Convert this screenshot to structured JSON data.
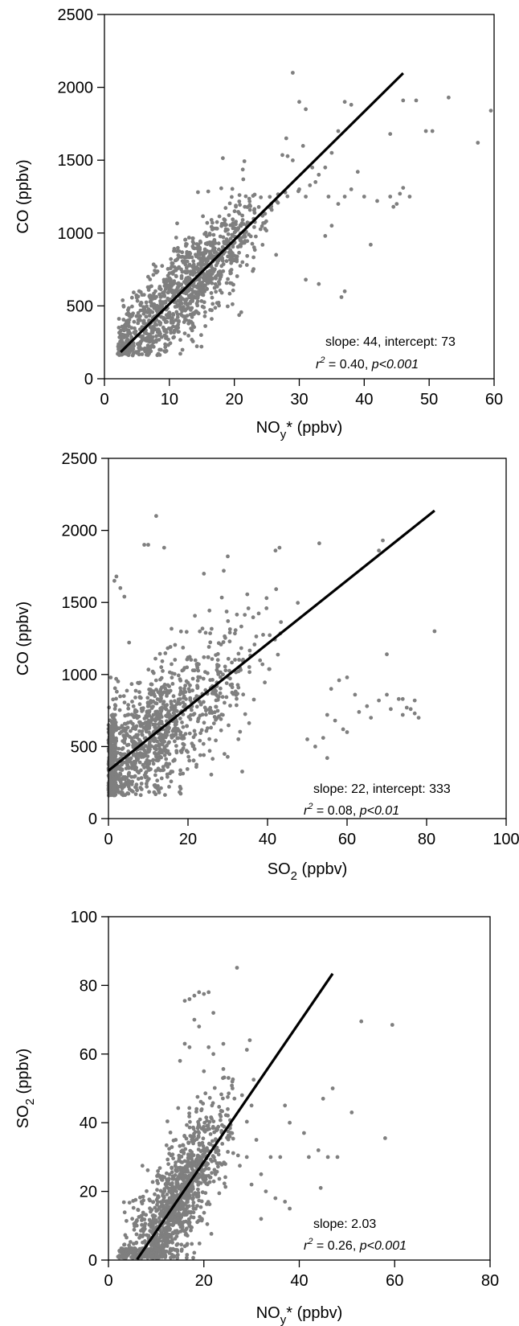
{
  "chart_data": [
    {
      "type": "scatter",
      "title": "",
      "xlabel": "NOy* (ppbv)",
      "xlabel_parts": {
        "base": "NO",
        "sub": "y",
        "rest": "* (ppbv)"
      },
      "ylabel": "CO (ppbv)",
      "xlim": [
        0,
        60
      ],
      "ylim": [
        0,
        2500
      ],
      "xticks": [
        "0",
        "10",
        "20",
        "30",
        "40",
        "50",
        "60"
      ],
      "yticks": [
        "0",
        "500",
        "1000",
        "1500",
        "2000",
        "2500"
      ],
      "grid": false,
      "point_color": "#7f7f7f",
      "line_color": "#000000",
      "fit": {
        "slope": 44,
        "intercept": 73,
        "x_range": [
          2.5,
          46
        ]
      },
      "annotation": {
        "line1": "slope: 44, intercept: 73",
        "r2_symbol": "r",
        "r2_exp": "2",
        "r2_value": " = 0.40, ",
        "p_text": "p<0.001"
      },
      "cluster": {
        "x_mean": 12,
        "x_sd": 6,
        "x_min": 2,
        "x_max": 32,
        "scatter_sd": 190,
        "count": 1200
      },
      "points": [
        [
          28,
          1650
        ],
        [
          30,
          1900
        ],
        [
          31,
          1850
        ],
        [
          29,
          2100
        ],
        [
          33,
          1400
        ],
        [
          32,
          1450
        ],
        [
          35,
          1550
        ],
        [
          36,
          1700
        ],
        [
          37,
          1900
        ],
        [
          38,
          1880
        ],
        [
          38,
          1300
        ],
        [
          37,
          1250
        ],
        [
          36,
          1200
        ],
        [
          37,
          600
        ],
        [
          36.5,
          560
        ],
        [
          33,
          650
        ],
        [
          31,
          680
        ],
        [
          40,
          1250
        ],
        [
          42,
          1220
        ],
        [
          44,
          1250
        ],
        [
          45,
          1200
        ],
        [
          45.5,
          1270
        ],
        [
          44.5,
          1180
        ],
        [
          46,
          1310
        ],
        [
          47,
          1250
        ],
        [
          44,
          1680
        ],
        [
          46,
          1910
        ],
        [
          48,
          1910
        ],
        [
          49.5,
          1700
        ],
        [
          50.5,
          1700
        ],
        [
          53,
          1930
        ],
        [
          57.5,
          1620
        ],
        [
          59.5,
          1840
        ],
        [
          34,
          1450
        ],
        [
          39,
          1420
        ],
        [
          35,
          1050
        ],
        [
          34,
          980
        ],
        [
          41,
          920
        ],
        [
          30,
          1300
        ],
        [
          31,
          1250
        ],
        [
          32.5,
          1350
        ],
        [
          34.5,
          1250
        ]
      ]
    },
    {
      "type": "scatter",
      "title": "",
      "xlabel": "SO2 (ppbv)",
      "xlabel_parts": {
        "base": "SO",
        "sub": "2",
        "rest": " (ppbv)"
      },
      "ylabel": "CO (ppbv)",
      "xlim": [
        0,
        100
      ],
      "ylim": [
        0,
        2500
      ],
      "xticks": [
        "0",
        "20",
        "40",
        "60",
        "80",
        "100"
      ],
      "yticks": [
        "0",
        "500",
        "1000",
        "1500",
        "2000",
        "2500"
      ],
      "grid": false,
      "point_color": "#7f7f7f",
      "line_color": "#000000",
      "fit": {
        "slope": 22,
        "intercept": 333,
        "x_range": [
          0,
          82
        ]
      },
      "annotation": {
        "line1": "slope: 22, intercept: 333",
        "r2_symbol": "r",
        "r2_exp": "2",
        "r2_value": " = 0.08, ",
        "p_text": "p<0.01"
      },
      "cluster": {
        "x_mean": 10,
        "x_sd": 12,
        "x_min": 0,
        "x_max": 62,
        "scatter_sd": 260,
        "count": 1300
      },
      "points": [
        [
          12,
          2100
        ],
        [
          10,
          1900
        ],
        [
          9,
          1900
        ],
        [
          14,
          1880
        ],
        [
          24,
          1700
        ],
        [
          30,
          1820
        ],
        [
          29,
          1720
        ],
        [
          42,
          1860
        ],
        [
          43,
          1880
        ],
        [
          53,
          1910
        ],
        [
          68,
          1860
        ],
        [
          69,
          1930
        ],
        [
          70,
          1140
        ],
        [
          68,
          820
        ],
        [
          70,
          860
        ],
        [
          71,
          760
        ],
        [
          73,
          830
        ],
        [
          74,
          830
        ],
        [
          75,
          770
        ],
        [
          76,
          760
        ],
        [
          77,
          820
        ],
        [
          78,
          700
        ],
        [
          74,
          720
        ],
        [
          77,
          730
        ],
        [
          82,
          1300
        ],
        [
          65,
          780
        ],
        [
          66,
          700
        ],
        [
          63,
          740
        ],
        [
          60,
          980
        ],
        [
          58,
          960
        ],
        [
          56,
          900
        ],
        [
          62,
          860
        ],
        [
          55,
          720
        ],
        [
          57,
          680
        ],
        [
          59,
          620
        ],
        [
          60,
          600
        ],
        [
          54,
          560
        ],
        [
          52,
          500
        ],
        [
          55,
          420
        ],
        [
          50,
          550
        ],
        [
          2,
          1680
        ],
        [
          3,
          1600
        ],
        [
          1.5,
          1650
        ],
        [
          4,
          1540
        ]
      ]
    },
    {
      "type": "scatter",
      "title": "",
      "xlabel": "NOy* (ppbv)",
      "xlabel_parts": {
        "base": "NO",
        "sub": "y",
        "rest": "* (ppbv)"
      },
      "ylabel": "SO2 (ppbv)",
      "ylabel_parts": {
        "base": "SO",
        "sub": "2",
        "rest": " (ppbv)"
      },
      "xlim": [
        0,
        80
      ],
      "ylim": [
        0,
        100
      ],
      "xticks": [
        "0",
        "20",
        "40",
        "60",
        "80"
      ],
      "yticks": [
        "0",
        "20",
        "40",
        "60",
        "80",
        "100"
      ],
      "grid": false,
      "point_color": "#7f7f7f",
      "line_color": "#000000",
      "fit": {
        "slope": 2.03,
        "intercept": -12,
        "x_range": [
          6,
          47
        ]
      },
      "annotation": {
        "line1": "slope: 2.03",
        "r2_symbol": "r",
        "r2_exp": "2",
        "r2_value": " = 0.26, ",
        "p_text": "p<0.001"
      },
      "cluster": {
        "x_mean": 14,
        "x_sd": 5.5,
        "x_min": 2,
        "x_max": 34,
        "scatter_sd": 10,
        "count": 1200
      },
      "points": [
        [
          16,
          75.5
        ],
        [
          17,
          76
        ],
        [
          18,
          77
        ],
        [
          19,
          78
        ],
        [
          20,
          77.5
        ],
        [
          21,
          78
        ],
        [
          22,
          72
        ],
        [
          18,
          70
        ],
        [
          19,
          68
        ],
        [
          21,
          62
        ],
        [
          16,
          63
        ],
        [
          17,
          62
        ],
        [
          22,
          60
        ],
        [
          15,
          58
        ],
        [
          20,
          55
        ],
        [
          24,
          53
        ],
        [
          26,
          50
        ],
        [
          28,
          48
        ],
        [
          30,
          45
        ],
        [
          29,
          30
        ],
        [
          31,
          35
        ],
        [
          32,
          25
        ],
        [
          33,
          20
        ],
        [
          35,
          18
        ],
        [
          36,
          30
        ],
        [
          37,
          45
        ],
        [
          38,
          40
        ],
        [
          37,
          17
        ],
        [
          38,
          15
        ],
        [
          41,
          37
        ],
        [
          42,
          30
        ],
        [
          44,
          32
        ],
        [
          44.5,
          21
        ],
        [
          45,
          47
        ],
        [
          46,
          30
        ],
        [
          47,
          50
        ],
        [
          48,
          30
        ],
        [
          51,
          43
        ],
        [
          53,
          69.5
        ],
        [
          58,
          35.5
        ],
        [
          59.5,
          68.5
        ],
        [
          34,
          30
        ],
        [
          30,
          22
        ],
        [
          32,
          12
        ]
      ]
    }
  ]
}
